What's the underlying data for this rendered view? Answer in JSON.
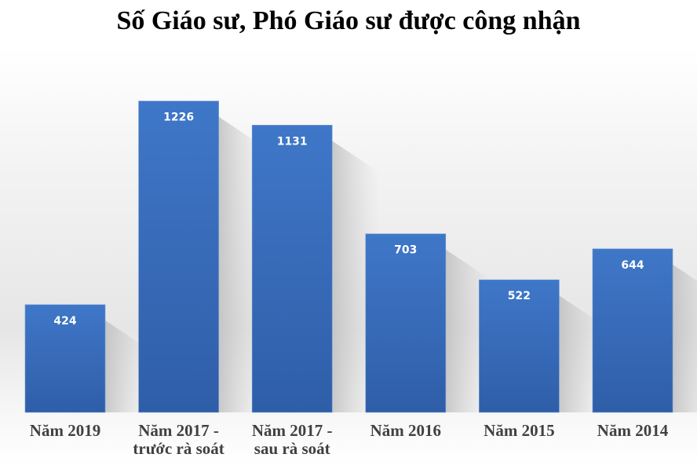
{
  "chart_data": {
    "type": "bar",
    "title": "Số Giáo sư, Phó Giáo sư được công nhận",
    "categories": [
      "Năm 2019",
      "Năm 2017 - trước rà soát",
      "Năm 2017 - sau rà soát",
      "Năm 2016",
      "Năm 2015",
      "Năm 2014"
    ],
    "category_lines": [
      [
        "Năm 2019"
      ],
      [
        "Năm 2017 -",
        "trước rà soát"
      ],
      [
        "Năm 2017 -",
        "sau rà soát"
      ],
      [
        "Năm 2016"
      ],
      [
        "Năm 2015"
      ],
      [
        "Năm 2014"
      ]
    ],
    "values": [
      424,
      1226,
      1131,
      703,
      522,
      644
    ],
    "xlabel": "",
    "ylabel": "",
    "grid": false,
    "legend": "none",
    "bar_color": "#3a6fc0",
    "data_label_color": "#ffffff"
  }
}
